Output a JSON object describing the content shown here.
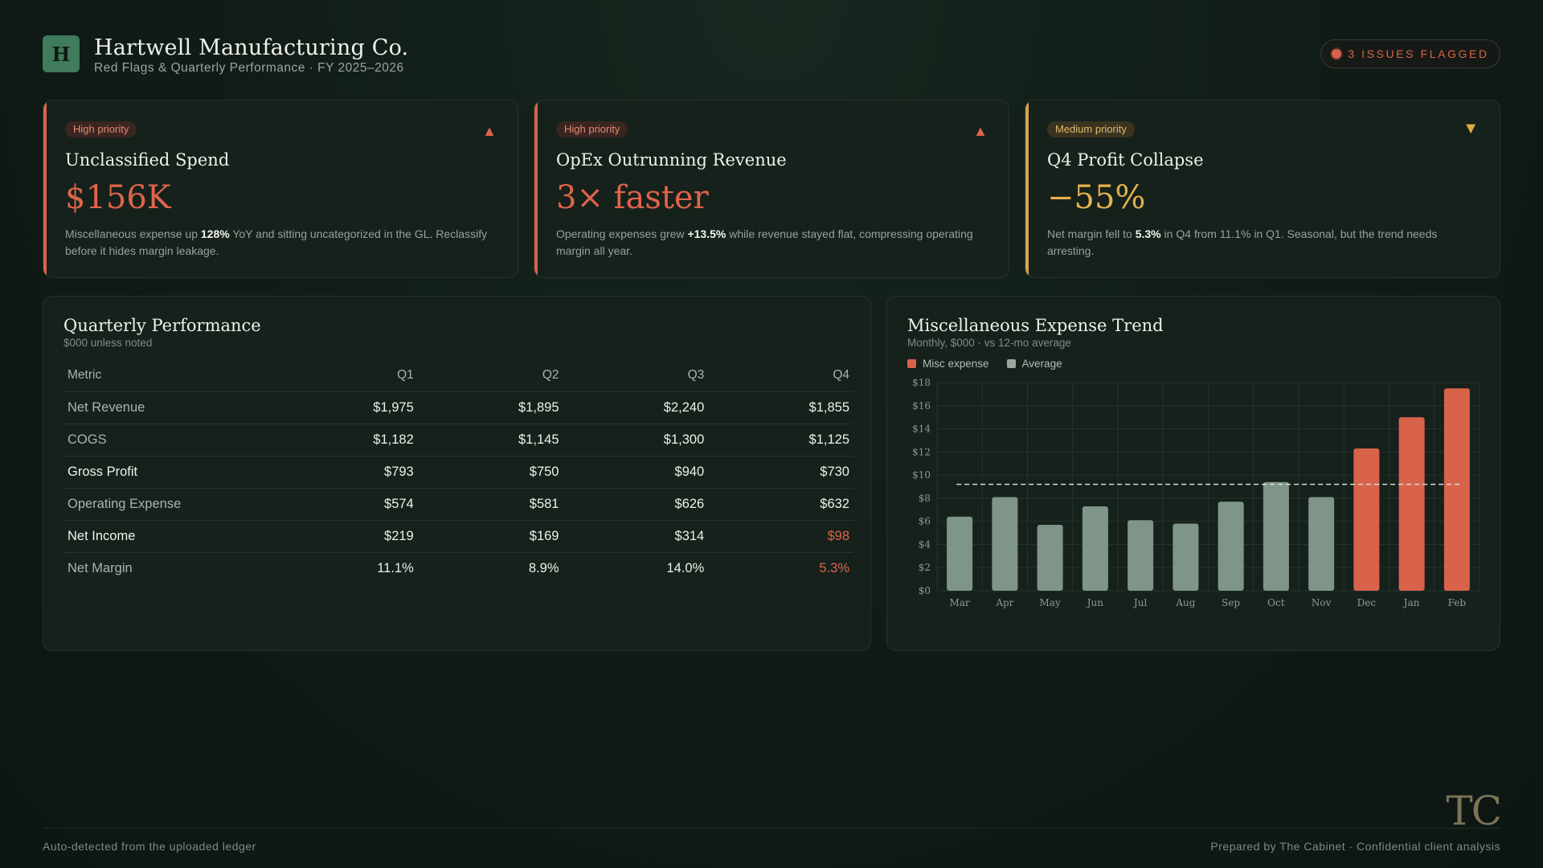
{
  "header": {
    "logo_letter": "H",
    "company": "Hartwell Manufacturing Co.",
    "subtitle": "Red Flags & Quarterly Performance · FY 2025–2026",
    "issues_label": "3 ISSUES FLAGGED"
  },
  "colors": {
    "high": "#d9634a",
    "medium": "#e6b14f",
    "bar_normal": "#7f958a",
    "bar_flagged": "#d9634a",
    "background": "#101a16"
  },
  "cards": [
    {
      "priority": "High priority",
      "icon": "triangle-up-icon",
      "title": "Unclassified Spend",
      "value": "$156K",
      "desc_pre": "Miscellaneous expense up ",
      "desc_bold": "128%",
      "desc_post": " YoY and sitting uncategorized in the GL. Reclassify before it hides margin leakage."
    },
    {
      "priority": "High priority",
      "icon": "triangle-up-icon",
      "title": "OpEx Outrunning Revenue",
      "value": "3× faster",
      "desc_pre": "Operating expenses grew ",
      "desc_bold": "+13.5%",
      "desc_post": " while revenue stayed flat, compressing operating margin all year."
    },
    {
      "priority": "Medium priority",
      "icon": "triangle-down-icon",
      "title": "Q4 Profit Collapse",
      "value": "−55%",
      "desc_pre": "Net margin fell to ",
      "desc_bold": "5.3%",
      "desc_post": " in Q4 from 11.1% in Q1. Seasonal, but the trend needs arresting."
    }
  ],
  "table": {
    "title": "Quarterly Performance",
    "subtitle": "$000 unless noted",
    "headers": [
      "Metric",
      "Q1",
      "Q2",
      "Q3",
      "Q4"
    ],
    "rows": [
      [
        "Net Revenue",
        "$1,975",
        "$1,895",
        "$2,240",
        "$1,855"
      ],
      [
        "COGS",
        "$1,182",
        "$1,145",
        "$1,300",
        "$1,125"
      ],
      [
        "Gross Profit",
        "$793",
        "$750",
        "$940",
        "$730"
      ],
      [
        "Operating Expense",
        "$574",
        "$581",
        "$626",
        "$632"
      ],
      [
        "Net Income",
        "$219",
        "$169",
        "$314",
        "$98"
      ],
      [
        "Net Margin",
        "11.1%",
        "8.9%",
        "14.0%",
        "5.3%"
      ]
    ]
  },
  "chart": {
    "title": "Miscellaneous Expense Trend",
    "subtitle": "Monthly, $000 · vs 12-mo average",
    "legend_misc": "Misc expense",
    "legend_avg": "Average"
  },
  "chart_data": {
    "type": "bar",
    "categories": [
      "Mar",
      "Apr",
      "May",
      "Jun",
      "Jul",
      "Aug",
      "Sep",
      "Oct",
      "Nov",
      "Dec",
      "Jan",
      "Feb"
    ],
    "series": [
      {
        "name": "Misc expense",
        "values": [
          6.4,
          8.1,
          5.7,
          7.3,
          6.1,
          5.8,
          7.7,
          9.4,
          8.1,
          12.3,
          15.0,
          17.5
        ]
      },
      {
        "name": "Average",
        "values": [
          9.2,
          9.2,
          9.2,
          9.2,
          9.2,
          9.2,
          9.2,
          9.2,
          9.2,
          9.2,
          9.2,
          9.2
        ]
      }
    ],
    "flagged": [
      "Dec",
      "Jan",
      "Feb"
    ],
    "yticks": [
      "$0",
      "$2",
      "$4",
      "$6",
      "$8",
      "$10",
      "$12",
      "$14",
      "$16",
      "$18"
    ],
    "ylim": [
      0,
      18
    ],
    "grid": true,
    "legend": "top-left"
  },
  "footer": {
    "mark": "TC",
    "left": "Auto-detected from the uploaded ledger",
    "right": "Prepared by The Cabinet · Confidential client analysis"
  }
}
